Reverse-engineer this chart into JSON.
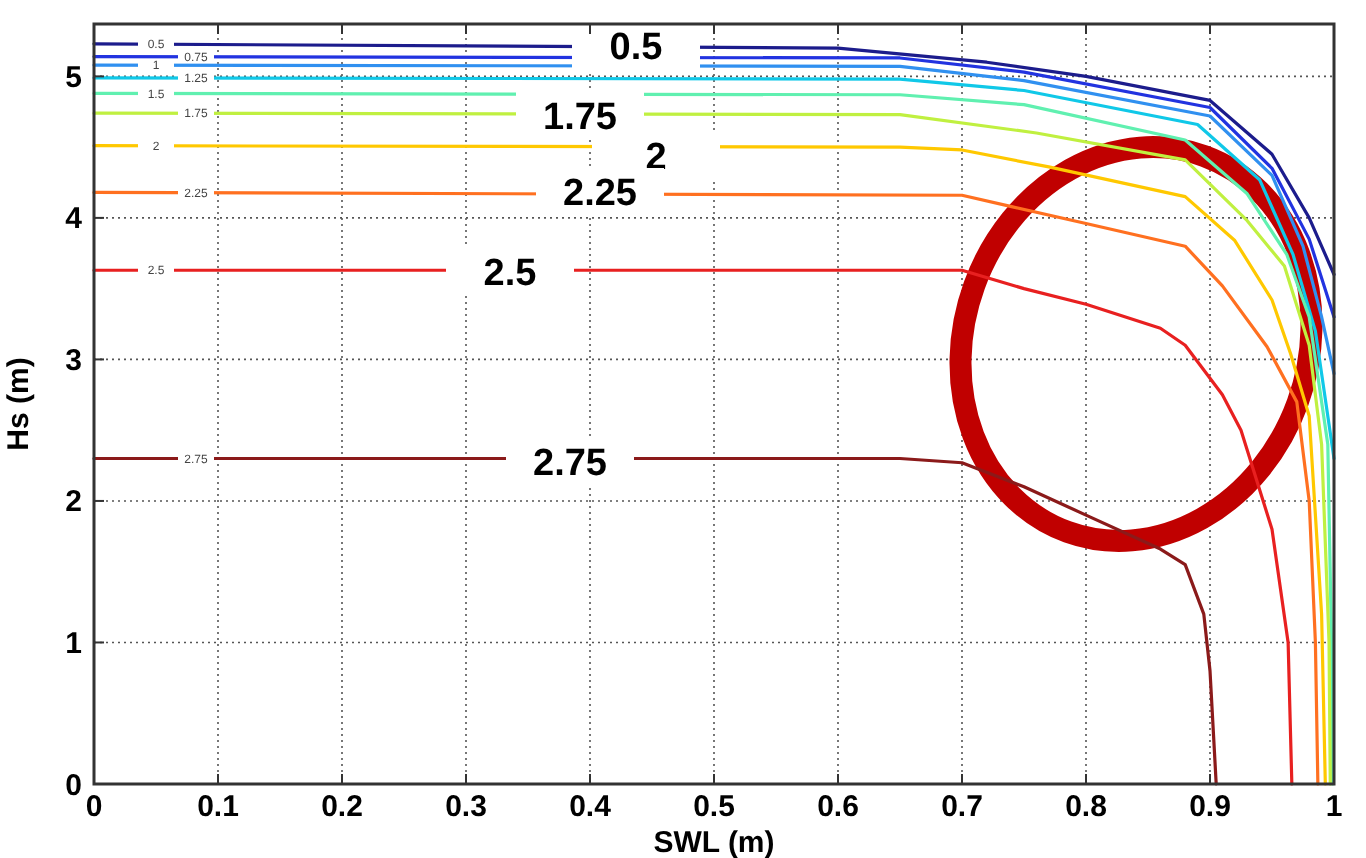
{
  "chart_data": {
    "type": "line",
    "xlabel": "SWL (m)",
    "ylabel": "Hs (m)",
    "xlim": [
      0,
      1
    ],
    "ylim": [
      0,
      5.37
    ],
    "xticks": [
      0,
      0.1,
      0.2,
      0.3,
      0.4,
      0.5,
      0.6,
      0.7,
      0.8,
      0.9,
      1
    ],
    "yticks": [
      0,
      1,
      2,
      3,
      4,
      5
    ],
    "grid": true,
    "legend": false,
    "marker": "none",
    "line_style": "solid",
    "series": [
      {
        "name": "0.5",
        "color": "#1c1c8c",
        "x": [
          0,
          0.6,
          0.72,
          0.8,
          0.9,
          0.95,
          0.98,
          1
        ],
        "values": [
          5.23,
          5.2,
          5.1,
          5.0,
          4.83,
          4.45,
          4.0,
          3.6
        ]
      },
      {
        "name": "0.75",
        "color": "#2233e0",
        "x": [
          0,
          0.65,
          0.75,
          0.9,
          0.95,
          0.98,
          1
        ],
        "values": [
          5.14,
          5.13,
          5.03,
          4.78,
          4.35,
          3.85,
          3.3
        ]
      },
      {
        "name": "1",
        "color": "#3090f0",
        "x": [
          0,
          0.65,
          0.75,
          0.9,
          0.95,
          0.975,
          0.99,
          1
        ],
        "values": [
          5.08,
          5.07,
          4.97,
          4.72,
          4.3,
          3.8,
          3.3,
          2.9
        ]
      },
      {
        "name": "1.25",
        "color": "#10c8e8",
        "x": [
          0,
          0.65,
          0.75,
          0.89,
          0.94,
          0.967,
          0.985,
          1
        ],
        "values": [
          4.99,
          4.98,
          4.9,
          4.66,
          4.27,
          3.74,
          3.2,
          2.3
        ]
      },
      {
        "name": "1.5",
        "color": "#60f0b0",
        "x": [
          0,
          0.65,
          0.75,
          0.88,
          0.93,
          0.962,
          0.98,
          0.995,
          0.998,
          0.999
        ],
        "values": [
          4.88,
          4.87,
          4.8,
          4.55,
          4.17,
          3.74,
          3.3,
          2.4,
          1.0,
          0
        ]
      },
      {
        "name": "1.75",
        "color": "#c0f040",
        "x": [
          0,
          0.65,
          0.76,
          0.88,
          0.93,
          0.96,
          0.98,
          0.99,
          0.996,
          0.997
        ],
        "values": [
          4.74,
          4.73,
          4.6,
          4.41,
          3.98,
          3.66,
          3.1,
          2.4,
          1.0,
          0
        ]
      },
      {
        "name": "2",
        "color": "#ffc800",
        "x": [
          0,
          0.65,
          0.7,
          0.77,
          0.88,
          0.92,
          0.95,
          0.965,
          0.98,
          0.99,
          0.993
        ],
        "values": [
          4.51,
          4.5,
          4.48,
          4.36,
          4.15,
          3.84,
          3.42,
          3.04,
          2.6,
          1.2,
          0
        ]
      },
      {
        "name": "2.25",
        "color": "#ff7020",
        "x": [
          0,
          0.7,
          0.74,
          0.8,
          0.88,
          0.91,
          0.946,
          0.97,
          0.98,
          0.985,
          0.987
        ],
        "values": [
          4.18,
          4.16,
          4.08,
          3.96,
          3.8,
          3.52,
          3.09,
          2.7,
          2.0,
          1.0,
          0
        ]
      },
      {
        "name": "2.5",
        "color": "#e82020",
        "x": [
          0,
          0.7,
          0.75,
          0.8,
          0.86,
          0.88,
          0.91,
          0.925,
          0.95,
          0.963,
          0.966
        ],
        "values": [
          3.63,
          3.63,
          3.5,
          3.39,
          3.22,
          3.1,
          2.75,
          2.5,
          1.8,
          1.0,
          0
        ]
      },
      {
        "name": "2.75",
        "color": "#8b1a1a",
        "x": [
          0,
          0.65,
          0.7,
          0.75,
          0.8,
          0.86,
          0.88,
          0.895,
          0.9,
          0.905
        ],
        "values": [
          2.3,
          2.3,
          2.27,
          2.1,
          1.9,
          1.66,
          1.55,
          1.2,
          0.8,
          0
        ]
      }
    ],
    "annotations": [
      "0.5",
      "1.75",
      "2",
      "2.25",
      "2.5",
      "2.75"
    ]
  }
}
